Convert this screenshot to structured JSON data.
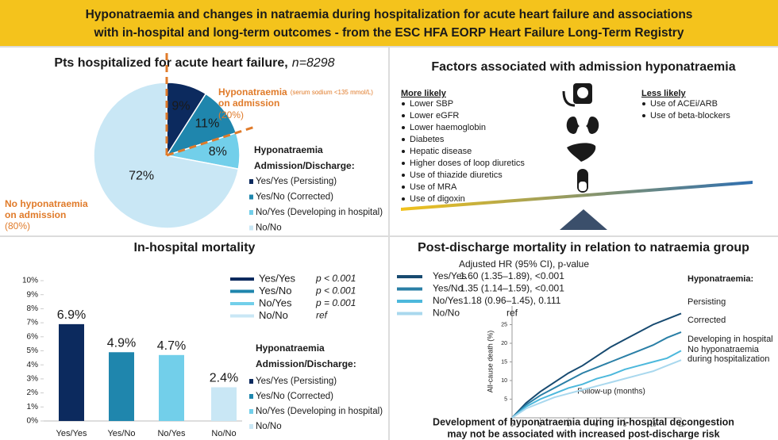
{
  "title_lines": [
    "Hyponatraemia and changes in natraemia during hospitalization for acute heart failure and associations",
    "with in-hospital and long-term outcomes - from the ESC HFA EORP Heart Failure Long-Term Registry"
  ],
  "factors": {
    "title": "Factors associated with admission hyponatraemia",
    "more_title": "More likely",
    "more": [
      "Lower SBP",
      "Lower eGFR",
      "Lower haemoglobin",
      "Diabetes",
      "Hepatic disease",
      "Higher doses of loop diuretics",
      "Use of thiazide diuretics",
      "Use of MRA",
      "Use of digoxin"
    ],
    "less_title": "Less likely",
    "less": [
      "Use of ACEi/ARB",
      "Use of beta-blockers"
    ]
  },
  "chart_data": [
    {
      "type": "pie",
      "title": "Pts hospitalized for acute heart failure,",
      "title_italic": "n=8298",
      "categories": [
        "Yes/Yes (Persisting)",
        "Yes/No (Corrected)",
        "No/Yes (Developing in hospital)",
        "No/No"
      ],
      "values": [
        9,
        11,
        8,
        72
      ],
      "value_labels": [
        "9%",
        "11%",
        "8%",
        "72%"
      ],
      "colors": [
        "#0c2a5e",
        "#1f86ad",
        "#72cfea",
        "#c9e7f5"
      ],
      "legend_title": [
        "Hyponatraemia",
        "Admission/Discharge:"
      ],
      "annotation_hypo": {
        "label": "Hyponatraemia",
        "note": "(serum sodium <135 mmol/L)",
        "lines": [
          "on admission",
          "(20%)"
        ]
      },
      "annotation_normo": {
        "lines": [
          "No hyponatraemia",
          "on admission",
          "(80%)"
        ]
      }
    },
    {
      "type": "bar",
      "title": "In-hospital mortality",
      "categories": [
        "Yes/Yes",
        "Yes/No",
        "No/Yes",
        "No/No"
      ],
      "values": [
        6.9,
        4.9,
        4.7,
        2.4
      ],
      "value_labels": [
        "6.9%",
        "4.9%",
        "4.7%",
        "2.4%"
      ],
      "colors": [
        "#0c2a5e",
        "#1f86ad",
        "#72cfea",
        "#c9e7f5"
      ],
      "ylim": [
        0,
        10
      ],
      "yticks": [
        {
          "value": 0,
          "label": "0%"
        },
        {
          "value": 1,
          "label": "1%"
        },
        {
          "value": 2,
          "label": "2%"
        },
        {
          "value": 3,
          "label": "3%"
        },
        {
          "value": 4,
          "label": "4%"
        },
        {
          "value": 5,
          "label": "5%"
        },
        {
          "value": 6,
          "label": "6%"
        },
        {
          "value": 7,
          "label": "7%"
        },
        {
          "value": 8,
          "label": "8%"
        },
        {
          "value": 9,
          "label": "9%"
        },
        {
          "value": 10,
          "label": "10%"
        }
      ],
      "p_values": [
        "p < 0.001",
        "p < 0.001",
        "p = 0.001",
        "ref"
      ],
      "legend_title": [
        "Hyponatraemia",
        "Admission/Discharge:"
      ],
      "legend_labels": [
        "Yes/Yes (Persisting)",
        "Yes/No (Corrected)",
        "No/Yes (Developing in hospital)",
        "No/No"
      ]
    },
    {
      "type": "line",
      "title": "Post-discharge mortality in relation to natraemia group",
      "hr_header": "Adjusted HR (95% CI), p-value",
      "x": [
        0,
        1,
        2,
        3,
        4,
        5,
        6,
        7,
        8,
        9,
        10,
        11,
        12
      ],
      "series": [
        {
          "name": "Yes/Yes",
          "color": "#174a70",
          "hr": "1.60 (1.35–1.89), <0.001",
          "values": [
            0,
            4,
            7,
            9.5,
            12,
            14,
            16.5,
            19,
            21,
            23,
            25,
            26.5,
            28
          ]
        },
        {
          "name": "Yes/No",
          "color": "#2a7fa6",
          "hr": "1.35 (1.14–1.59), <0.001",
          "values": [
            0,
            3.5,
            6,
            8,
            10,
            12,
            13.5,
            15,
            16.5,
            18,
            19.5,
            21.5,
            23
          ]
        },
        {
          "name": "No/Yes",
          "color": "#4cb8dc",
          "hr": "1.18 (0.96–1.45), 0.111",
          "values": [
            0,
            3,
            5,
            6.5,
            8,
            9,
            10.5,
            11.5,
            13,
            14,
            15,
            16,
            18
          ]
        },
        {
          "name": "No/No",
          "color": "#a9d8ee",
          "hr": "ref",
          "values": [
            0,
            2.5,
            4,
            5.5,
            6.5,
            7.5,
            8.5,
            9.5,
            10.5,
            11.5,
            12.5,
            14,
            15.5
          ]
        }
      ],
      "xlim": [
        0,
        12
      ],
      "xticks": [
        0,
        2,
        4,
        6,
        8,
        10,
        12
      ],
      "ylim": [
        0,
        30
      ],
      "yticks": [
        5,
        10,
        15,
        20,
        25
      ],
      "y_label": "All-cause death (%)",
      "x_label": "Follow-up (months)",
      "end_labels_title": "Hyponatraemia:",
      "end_labels": [
        "Persisting",
        "Corrected",
        "Developing in hospital",
        "No hyponatraemia",
        "during hospitalization"
      ],
      "footnote": [
        "Development of hyponatraemia during in-hospital decongestion",
        "may not be associated with increased post-discharge risk"
      ]
    }
  ]
}
